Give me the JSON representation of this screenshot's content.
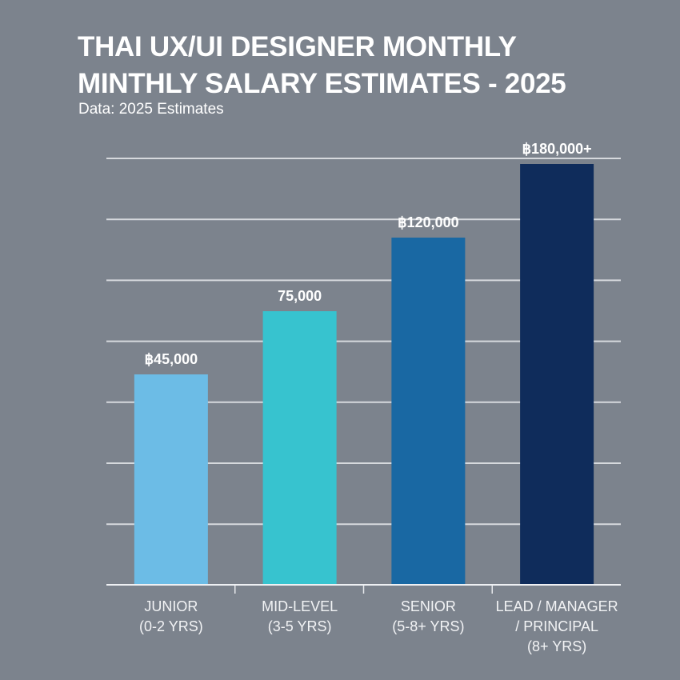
{
  "chart_data": {
    "type": "bar",
    "title_lines": [
      "THAI UX/UI DESIGNER MONTHLY",
      "MINTHLY SALARY ESTIMATES - 2025"
    ],
    "subtitle": "Data: 2025 Estimates",
    "categories": [
      [
        "JUNIOR",
        "(0-2 YRS)"
      ],
      [
        "MID-LEVEL",
        "(3-5 YRS)"
      ],
      [
        "SENIOR",
        "(5-8+ YRS)"
      ],
      [
        "LEAD / MANAGER",
        "/ PRINCIPAL",
        "(8+ YRS)"
      ]
    ],
    "values": [
      45000,
      75000,
      120000,
      180000
    ],
    "data_labels": [
      "฿45,000",
      "75,000",
      "฿120,000",
      "฿180,000+"
    ],
    "currency": "THB",
    "colors": [
      "#6cbce6",
      "#37c3cf",
      "#1968a3",
      "#0f2c5b"
    ],
    "grid": true,
    "legend": "none",
    "xlabel": "",
    "ylabel": ""
  }
}
